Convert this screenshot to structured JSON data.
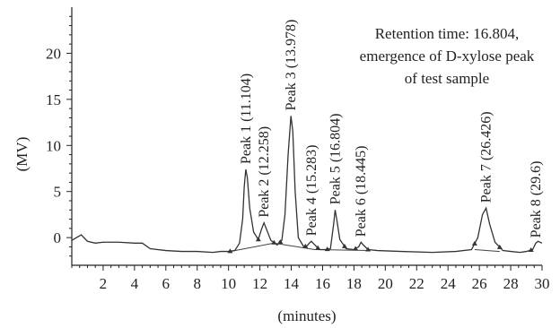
{
  "chart_data": {
    "type": "line",
    "title": "",
    "xlabel": "(minutes)",
    "ylabel": "(MV)",
    "xlim": [
      0,
      30
    ],
    "ylim": [
      -3,
      25
    ],
    "x_ticks": [
      2,
      4,
      6,
      8,
      10,
      12,
      14,
      16,
      18,
      20,
      22,
      24,
      26,
      28,
      30
    ],
    "y_ticks": [
      0,
      5,
      10,
      15,
      20
    ],
    "annotation": [
      "Retention time: 16.804,",
      "emergence of D-xylose peak",
      "of test sample"
    ],
    "peaks": [
      {
        "label": "Peak 1 (11.104)",
        "x": 11.104,
        "height": 7.4
      },
      {
        "label": "Peak 2 (12.258)",
        "x": 12.258,
        "height": 1.6
      },
      {
        "label": "Peak 3 (13.978)",
        "x": 13.978,
        "height": 13.2
      },
      {
        "label": "Peak 4 (15.283)",
        "x": 15.283,
        "height": -0.4
      },
      {
        "label": "Peak 5 (16.804)",
        "x": 16.804,
        "height": 3.0
      },
      {
        "label": "Peak 6 (18.445)",
        "x": 18.445,
        "height": -0.5
      },
      {
        "label": "Peak 7 (26.426)",
        "x": 26.426,
        "height": 3.2
      },
      {
        "label": "Peak 8 (29.6)",
        "x": 29.6,
        "height": -0.6
      }
    ],
    "series": [
      {
        "x": [
          0,
          0.6,
          1.0,
          1.5,
          2.0,
          3.0,
          4.0,
          4.5,
          5.0,
          6.0,
          7.0,
          8.0,
          9.0,
          9.5,
          10.0,
          10.4,
          10.7,
          10.9,
          11.0,
          11.1,
          11.2,
          11.35,
          11.6,
          11.9,
          12.1,
          12.26,
          12.4,
          12.7,
          13.1,
          13.4,
          13.6,
          13.8,
          13.98,
          14.1,
          14.25,
          14.45,
          14.8,
          15.0,
          15.15,
          15.28,
          15.45,
          15.8,
          16.2,
          16.5,
          16.7,
          16.8,
          16.9,
          17.1,
          17.5,
          18.0,
          18.3,
          18.45,
          18.6,
          18.9,
          19.5,
          21.0,
          23.0,
          24.5,
          25.5,
          25.9,
          26.2,
          26.43,
          26.65,
          27.0,
          27.5,
          28.0,
          28.6,
          29.0,
          29.4,
          29.6,
          29.75,
          30.0
        ],
        "y": [
          -0.3,
          0.3,
          -0.4,
          -0.6,
          -0.5,
          -0.5,
          -0.6,
          -0.6,
          -1.2,
          -1.4,
          -1.5,
          -1.5,
          -1.6,
          -1.5,
          -1.5,
          -1.4,
          -0.6,
          2.0,
          5.5,
          7.4,
          6.5,
          3.2,
          0.6,
          -0.2,
          0.9,
          1.6,
          1.0,
          -0.3,
          -0.8,
          -0.3,
          2.5,
          9.0,
          13.2,
          11.5,
          5.0,
          0.0,
          -1.0,
          -0.9,
          -0.6,
          -0.4,
          -0.7,
          -1.3,
          -1.3,
          -1.2,
          1.4,
          3.0,
          2.0,
          -0.2,
          -1.2,
          -1.3,
          -1.0,
          -0.5,
          -0.8,
          -1.3,
          -1.4,
          -1.5,
          -1.6,
          -1.5,
          -1.3,
          0.0,
          2.5,
          3.2,
          1.5,
          -0.5,
          -1.4,
          -1.5,
          -1.6,
          -1.5,
          -1.3,
          -0.6,
          -0.4,
          -0.6
        ]
      }
    ]
  }
}
